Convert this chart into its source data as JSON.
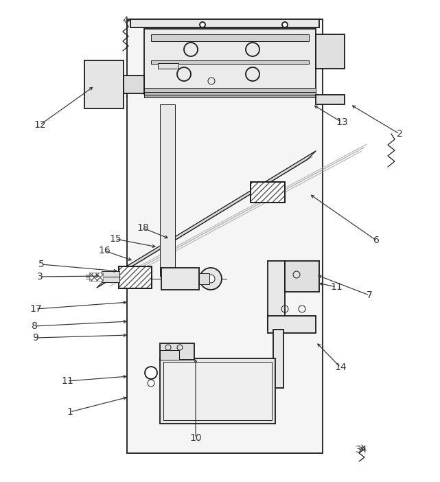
{
  "bg_color": "#ffffff",
  "lc": "#1a1a1a",
  "gc": "#999999",
  "lw_main": 1.3,
  "lw_thin": 0.7,
  "figsize": [
    6.41,
    7.02
  ],
  "dpi": 100
}
